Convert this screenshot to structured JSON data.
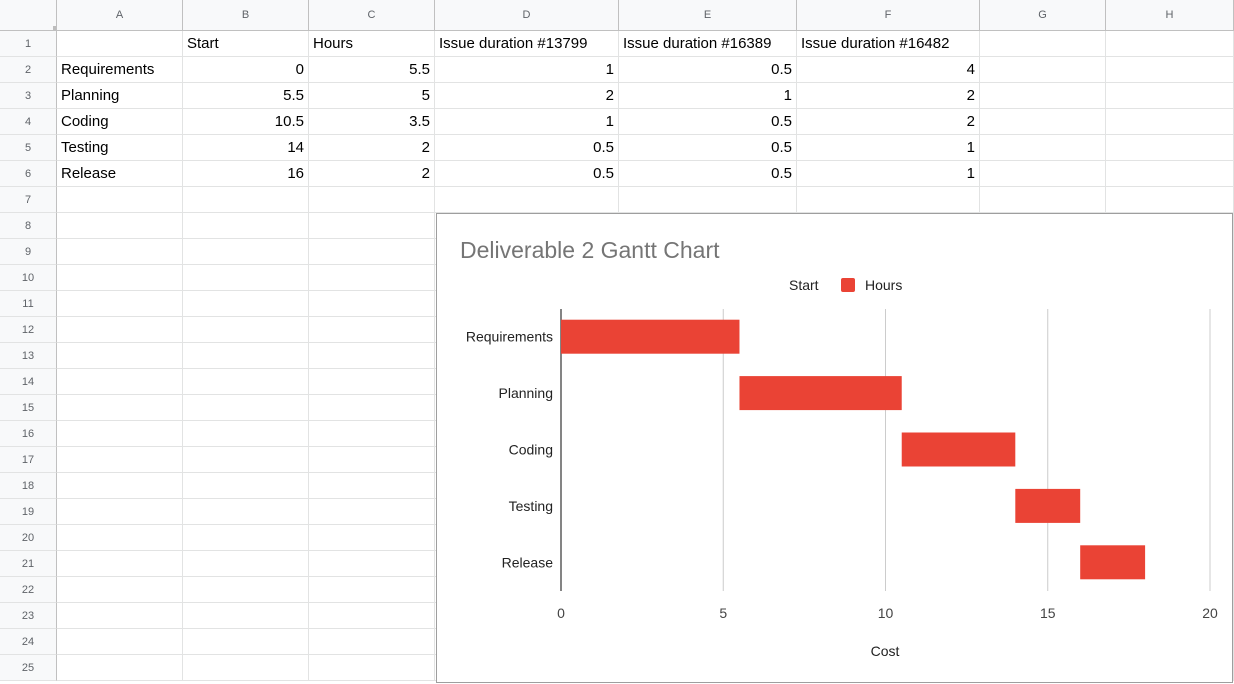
{
  "columns": [
    "A",
    "B",
    "C",
    "D",
    "E",
    "F",
    "G",
    "H"
  ],
  "rows": [
    "1",
    "2",
    "3",
    "4",
    "5",
    "6",
    "7",
    "8",
    "9",
    "10",
    "11",
    "12",
    "13",
    "14",
    "15",
    "16",
    "17",
    "18",
    "19",
    "20",
    "21",
    "22",
    "23",
    "24",
    "25"
  ],
  "headers": [
    "",
    "Start",
    "Hours",
    "Issue duration #13799",
    "Issue duration #16389",
    "Issue duration #16482"
  ],
  "table": [
    [
      "Requirements",
      "0",
      "5.5",
      "1",
      "0.5",
      "4"
    ],
    [
      "Planning",
      "5.5",
      "5",
      "2",
      "1",
      "2"
    ],
    [
      "Coding",
      "10.5",
      "3.5",
      "1",
      "0.5",
      "2"
    ],
    [
      "Testing",
      "14",
      "2",
      "0.5",
      "0.5",
      "1"
    ],
    [
      "Release",
      "16",
      "2",
      "0.5",
      "0.5",
      "1"
    ]
  ],
  "chart_data": {
    "type": "bar",
    "orientation": "horizontal",
    "stacked": true,
    "title": "Deliverable 2 Gantt Chart",
    "xlabel": "Cost",
    "ylabel": "",
    "categories": [
      "Requirements",
      "Planning",
      "Coding",
      "Testing",
      "Release"
    ],
    "series": [
      {
        "name": "Start",
        "values": [
          0,
          5.5,
          10.5,
          14,
          16
        ],
        "color": "none"
      },
      {
        "name": "Hours",
        "values": [
          5.5,
          5,
          3.5,
          2,
          2
        ],
        "color": "#ea4335"
      }
    ],
    "xlim": [
      0,
      20
    ],
    "xticks": [
      "0",
      "5",
      "10",
      "15",
      "20"
    ],
    "grid": true,
    "legend_position": "top"
  }
}
